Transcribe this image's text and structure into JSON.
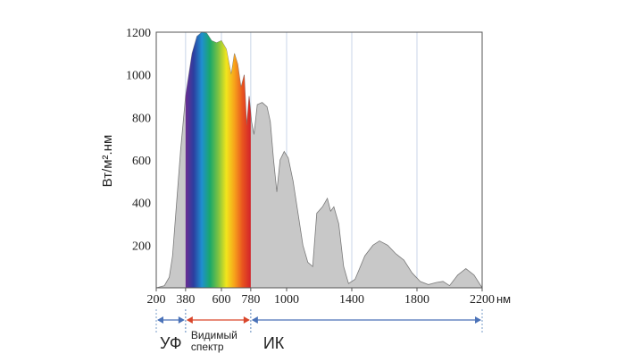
{
  "chart_data": {
    "type": "area",
    "ylabel": "Вт/м².нм",
    "xunit": "нм",
    "series": [
      {
        "color": "#c8c8c8",
        "x": [
          200,
          250,
          280,
          300,
          320,
          350,
          380,
          420,
          450,
          480,
          510,
          540,
          570,
          600,
          630,
          660,
          680,
          700,
          720,
          740,
          755,
          770,
          785,
          800,
          820,
          850,
          880,
          900,
          920,
          940,
          960,
          985,
          1010,
          1040,
          1070,
          1100,
          1130,
          1160,
          1185,
          1220,
          1250,
          1270,
          1290,
          1320,
          1350,
          1380,
          1420,
          1480,
          1530,
          1570,
          1620,
          1670,
          1720,
          1770,
          1820,
          1870,
          1920,
          1960,
          2000,
          2050,
          2100,
          2150,
          2200
        ],
        "values": [
          0,
          10,
          50,
          150,
          350,
          650,
          900,
          1100,
          1180,
          1200,
          1195,
          1160,
          1150,
          1160,
          1120,
          1000,
          1100,
          1050,
          940,
          1000,
          760,
          900,
          780,
          720,
          860,
          870,
          850,
          780,
          600,
          450,
          600,
          640,
          610,
          500,
          350,
          200,
          120,
          100,
          350,
          380,
          420,
          360,
          380,
          300,
          100,
          20,
          40,
          150,
          200,
          220,
          200,
          160,
          130,
          70,
          30,
          15,
          25,
          30,
          10,
          60,
          90,
          60,
          0
        ]
      }
    ],
    "visible_color_stops": [
      "#6a2c91",
      "#2b3fa0",
      "#1f8fd0",
      "#1aa86a",
      "#7cc242",
      "#f2e51c",
      "#f7a21b",
      "#e8541f",
      "#d2232a"
    ],
    "xlim": [
      200,
      2200
    ],
    "xticks": [
      200,
      380,
      600,
      780,
      1000,
      1400,
      1800,
      2200
    ],
    "ylim": [
      0,
      1200
    ],
    "yticks": [
      200,
      400,
      600,
      800,
      1000,
      1200
    ],
    "grid": true,
    "bands": [
      {
        "label": [
          "УФ"
        ],
        "from": 200,
        "to": 380,
        "color": "#4a72b8"
      },
      {
        "label": [
          "Видимый",
          "спектр"
        ],
        "from": 380,
        "to": 780,
        "color": "#d9462b"
      },
      {
        "label": [
          "ИК"
        ],
        "from": 780,
        "to": 2200,
        "color": "#4a72b8"
      }
    ]
  }
}
